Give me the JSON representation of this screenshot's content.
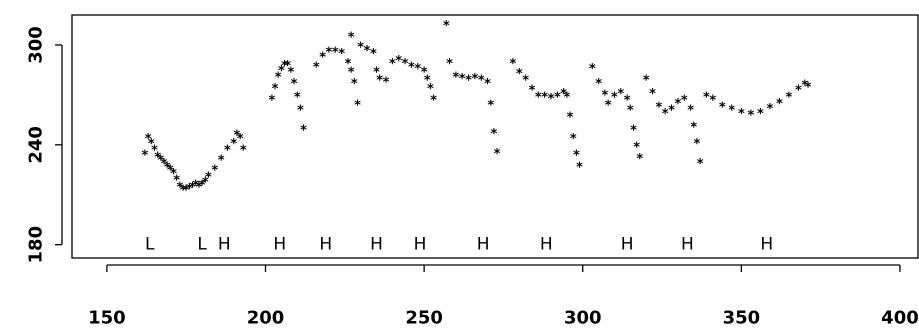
{
  "chart_data": {
    "type": "scatter",
    "x": [
      162,
      163,
      164,
      165,
      166,
      167,
      168,
      169,
      170,
      171,
      172,
      173,
      174,
      175,
      176,
      177,
      178,
      179,
      180,
      181,
      182,
      184,
      186,
      188,
      190,
      191,
      192,
      193,
      202,
      203,
      204,
      205,
      206,
      207,
      208,
      209,
      210,
      211,
      212,
      216,
      218,
      220,
      222,
      224,
      226,
      227,
      228,
      229,
      227,
      230,
      232,
      234,
      235,
      236,
      238,
      240,
      242,
      244,
      246,
      248,
      250,
      251,
      252,
      253,
      257,
      258,
      260,
      262,
      264,
      266,
      268,
      270,
      271,
      272,
      273,
      278,
      280,
      282,
      284,
      286,
      288,
      290,
      292,
      294,
      295,
      296,
      297,
      298,
      299,
      303,
      305,
      307,
      308,
      310,
      312,
      314,
      315,
      316,
      317,
      318,
      320,
      322,
      324,
      326,
      328,
      330,
      332,
      334,
      335,
      336,
      337,
      339,
      341,
      344,
      347,
      350,
      353,
      356,
      359,
      362,
      365,
      368,
      370,
      371
    ],
    "y": [
      235,
      245,
      242,
      238,
      234,
      232,
      230,
      228,
      226,
      224,
      220,
      216,
      214,
      214,
      215,
      216,
      217,
      216,
      217,
      219,
      222,
      226,
      232,
      238,
      242,
      247,
      245,
      238,
      268,
      275,
      282,
      286,
      289,
      289,
      285,
      278,
      270,
      262,
      250,
      288,
      294,
      297,
      297,
      296,
      290,
      285,
      278,
      265,
      306,
      300,
      298,
      296,
      285,
      280,
      279,
      290,
      292,
      290,
      288,
      287,
      285,
      280,
      275,
      268,
      313,
      290,
      282,
      281,
      280,
      281,
      280,
      278,
      265,
      248,
      236,
      290,
      284,
      280,
      274,
      270,
      270,
      269,
      270,
      272,
      270,
      258,
      245,
      235,
      228,
      287,
      278,
      271,
      265,
      270,
      272,
      268,
      262,
      250,
      240,
      233,
      280,
      272,
      264,
      260,
      262,
      266,
      268,
      262,
      252,
      242,
      230,
      270,
      268,
      264,
      262,
      260,
      259,
      260,
      263,
      266,
      270,
      274,
      277,
      276
    ],
    "annotations": [
      {
        "text": "L",
        "x": 163.5,
        "y": 180
      },
      {
        "text": "L",
        "x": 180,
        "y": 180
      },
      {
        "text": "H",
        "x": 187,
        "y": 180
      },
      {
        "text": "H",
        "x": 204.5,
        "y": 180
      },
      {
        "text": "H",
        "x": 219,
        "y": 180
      },
      {
        "text": "H",
        "x": 235,
        "y": 180
      },
      {
        "text": "H",
        "x": 248.7,
        "y": 180
      },
      {
        "text": "H",
        "x": 268.6,
        "y": 180
      },
      {
        "text": "H",
        "x": 288.5,
        "y": 180
      },
      {
        "text": "H",
        "x": 314,
        "y": 180
      },
      {
        "text": "H",
        "x": 333,
        "y": 180
      },
      {
        "text": "H",
        "x": 358,
        "y": 180
      }
    ],
    "xlim": [
      139,
      406
    ],
    "xticks": [
      150,
      200,
      250,
      300,
      350,
      400
    ],
    "ylim": [
      172,
      318
    ],
    "yticks": [
      180,
      240,
      300
    ],
    "marker": "*",
    "color": "#000000"
  }
}
